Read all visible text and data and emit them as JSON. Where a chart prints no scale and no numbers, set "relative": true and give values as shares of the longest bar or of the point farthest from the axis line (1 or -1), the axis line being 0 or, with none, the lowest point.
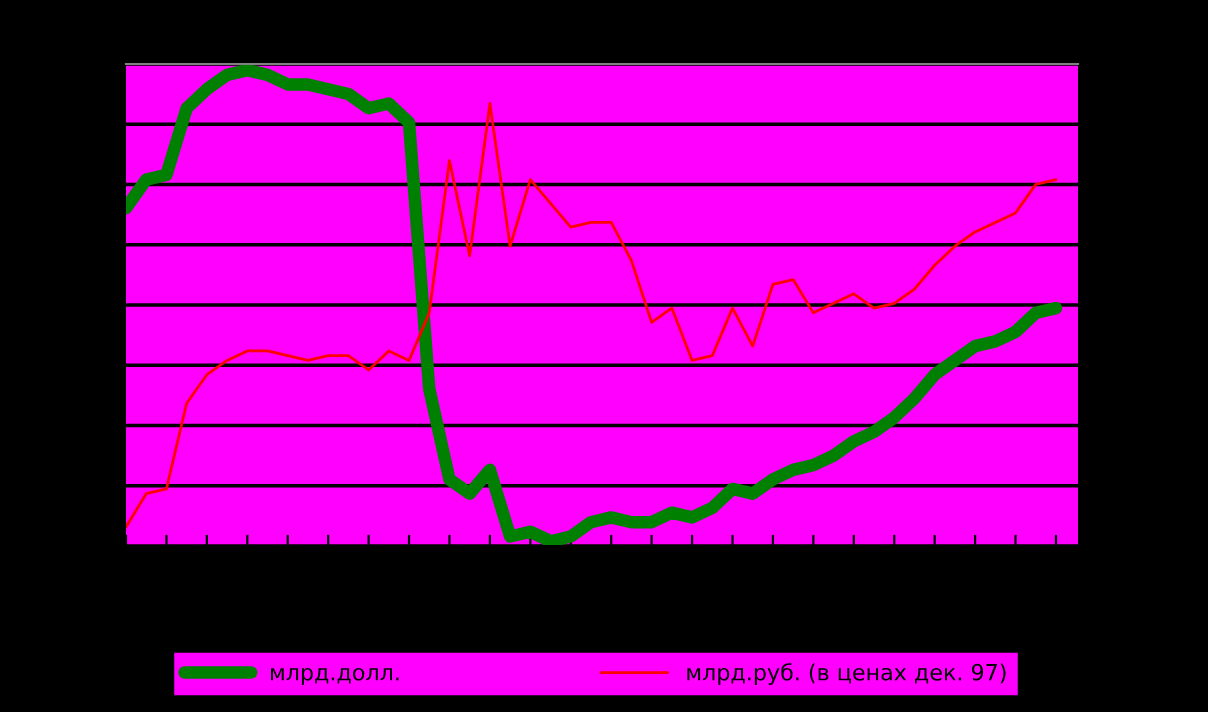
{
  "chart_data": {
    "type": "line",
    "relative": true,
    "grid": "y",
    "legend": "bottom",
    "categories": [
      null,
      null,
      null,
      null,
      null,
      null,
      null,
      null,
      null,
      null,
      null,
      null,
      null,
      null,
      null,
      null,
      null,
      null,
      null,
      null,
      null,
      null,
      null,
      null,
      null,
      null,
      null,
      null,
      null,
      null,
      null,
      null,
      null,
      null,
      null,
      null,
      null,
      null,
      null,
      null,
      null,
      null,
      null,
      null,
      null,
      null,
      null
    ],
    "series": [
      {
        "name": "млрд.долл.",
        "color": "#008000",
        "values": [
          0.71,
          0.77,
          0.78,
          0.92,
          0.96,
          0.99,
          1,
          0.99,
          0.97,
          0.97,
          0.96,
          0.95,
          0.92,
          0.93,
          0.89,
          0.33,
          0.14,
          0.11,
          0.16,
          0.02,
          0.03,
          0.01,
          0.02,
          0.05,
          0.06,
          0.05,
          0.05,
          0.07,
          0.06,
          0.08,
          0.12,
          0.11,
          0.14,
          0.16,
          0.17,
          0.19,
          0.22,
          0.24,
          0.27,
          0.31,
          0.36,
          0.39,
          0.42,
          0.43,
          0.45,
          0.49,
          0.5
        ]
      },
      {
        "name": "млрд.руб. (в ценах дек. 97)",
        "color": "#ff0000",
        "values": [
          0.04,
          0.11,
          0.12,
          0.3,
          0.36,
          0.39,
          0.41,
          0.41,
          0.4,
          0.39,
          0.4,
          0.4,
          0.37,
          0.41,
          0.39,
          0.49,
          0.81,
          0.61,
          0.93,
          0.63,
          0.77,
          0.72,
          0.67,
          0.68,
          0.68,
          0.6,
          0.47,
          0.5,
          0.39,
          0.4,
          0.5,
          0.42,
          0.55,
          0.56,
          0.49,
          0.51,
          0.53,
          0.5,
          0.51,
          0.54,
          0.59,
          0.63,
          0.66,
          0.68,
          0.7,
          0.76,
          0.77
        ]
      }
    ]
  }
}
